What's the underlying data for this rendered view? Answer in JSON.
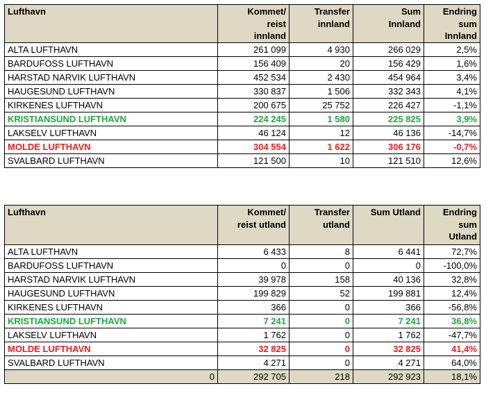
{
  "innland": {
    "headers": [
      "Lufthavn",
      "Kommet/\nreist\ninnland",
      "Transfer\ninnland",
      "Sum\nInnland",
      "Endring\nsum\nInnland"
    ],
    "rows": [
      {
        "name": "ALTA LUFTHAVN",
        "kommet": "261 099",
        "transfer": "4 930",
        "sum": "266 029",
        "endring": "2,5%",
        "highlight": ""
      },
      {
        "name": "BARDUFOSS LUFTHAVN",
        "kommet": "156 409",
        "transfer": "20",
        "sum": "156 429",
        "endring": "1,6%",
        "highlight": ""
      },
      {
        "name": "HARSTAD NARVIK LUFTHAVN",
        "kommet": "452 534",
        "transfer": "2 430",
        "sum": "454 964",
        "endring": "3,4%",
        "highlight": ""
      },
      {
        "name": "HAUGESUND LUFTHAVN",
        "kommet": "330 837",
        "transfer": "1 506",
        "sum": "332 343",
        "endring": "4,1%",
        "highlight": ""
      },
      {
        "name": "KIRKENES LUFTHAVN",
        "kommet": "200 675",
        "transfer": "25 752",
        "sum": "226 427",
        "endring": "-1,1%",
        "highlight": ""
      },
      {
        "name": "KRISTIANSUND LUFTHAVN",
        "kommet": "224 245",
        "transfer": "1 580",
        "sum": "225 825",
        "endring": "3,9%",
        "highlight": "green"
      },
      {
        "name": "LAKSELV LUFTHAVN",
        "kommet": "46 124",
        "transfer": "12",
        "sum": "46 136",
        "endring": "-14,7%",
        "highlight": ""
      },
      {
        "name": "MOLDE LUFTHAVN",
        "kommet": "304 554",
        "transfer": "1 622",
        "sum": "306 176",
        "endring": "-0,7%",
        "highlight": "red"
      },
      {
        "name": "SVALBARD LUFTHAVN",
        "kommet": "121 500",
        "transfer": "10",
        "sum": "121 510",
        "endring": "12,6%",
        "highlight": ""
      }
    ]
  },
  "utland": {
    "headers": [
      "Lufthavn",
      "Kommet/\nreist utland",
      "Transfer\nutland",
      "Sum Utland",
      "Endring\nsum\nUtland"
    ],
    "rows": [
      {
        "name": "ALTA LUFTHAVN",
        "kommet": "6 433",
        "transfer": "8",
        "sum": "6 441",
        "endring": "72,7%",
        "highlight": ""
      },
      {
        "name": "BARDUFOSS LUFTHAVN",
        "kommet": "0",
        "transfer": "0",
        "sum": "0",
        "endring": "-100,0%",
        "highlight": ""
      },
      {
        "name": "HARSTAD NARVIK LUFTHAVN",
        "kommet": "39 978",
        "transfer": "158",
        "sum": "40 136",
        "endring": "32,8%",
        "highlight": ""
      },
      {
        "name": "HAUGESUND LUFTHAVN",
        "kommet": "199 829",
        "transfer": "52",
        "sum": "199 881",
        "endring": "12,4%",
        "highlight": ""
      },
      {
        "name": "KIRKENES LUFTHAVN",
        "kommet": "366",
        "transfer": "0",
        "sum": "366",
        "endring": "-56,8%",
        "highlight": ""
      },
      {
        "name": "KRISTIANSUND LUFTHAVN",
        "kommet": "7 241",
        "transfer": "0",
        "sum": "7 241",
        "endring": "36,8%",
        "highlight": "green"
      },
      {
        "name": "LAKSELV LUFTHAVN",
        "kommet": "1 762",
        "transfer": "0",
        "sum": "1 762",
        "endring": "-47,7%",
        "highlight": ""
      },
      {
        "name": "MOLDE LUFTHAVN",
        "kommet": "32 825",
        "transfer": "0",
        "sum": "32 825",
        "endring": "41,4%",
        "highlight": "red"
      },
      {
        "name": "SVALBARD LUFTHAVN",
        "kommet": "4 271",
        "transfer": "0",
        "sum": "4 271",
        "endring": "64,0%",
        "highlight": ""
      }
    ],
    "total": {
      "name": "0",
      "kommet": "292 705",
      "transfer": "218",
      "sum": "292 923",
      "endring": "18,1%"
    }
  }
}
